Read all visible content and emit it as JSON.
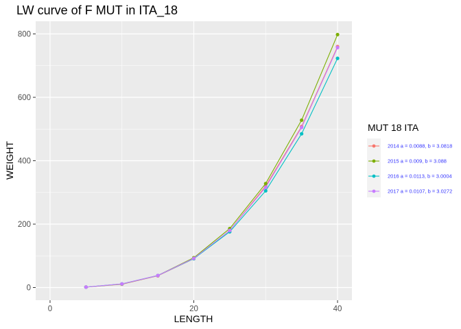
{
  "chart_data": {
    "type": "line",
    "title": "LW curve of F MUT in ITA_18",
    "xlabel": "LENGTH",
    "ylabel": "WEIGHT",
    "xlim": [
      -2,
      42
    ],
    "ylim": [
      -40,
      840
    ],
    "x_ticks": [
      0,
      20,
      40
    ],
    "y_ticks": [
      0,
      200,
      400,
      600,
      800
    ],
    "grid": true,
    "legend": {
      "title": "MUT 18 ITA",
      "position": "right"
    },
    "x": [
      5,
      10,
      15,
      20,
      25,
      30,
      35,
      40
    ],
    "series": [
      {
        "name": "2014 a = 0.0088, b = 3.0818",
        "color": "#F8766D",
        "values": [
          1.3,
          10.5,
          37,
          91,
          180,
          320,
          508,
          760
        ]
      },
      {
        "name": "2015 a = 0.009, b = 3.088",
        "color": "#7CAE00",
        "values": [
          1.3,
          11,
          38,
          94,
          186,
          328,
          528,
          798
        ]
      },
      {
        "name": "2016 a = 0.0113, b = 3.0004",
        "color": "#00BFC4",
        "values": [
          1.4,
          11.5,
          38,
          91,
          176,
          305,
          485,
          723
        ]
      },
      {
        "name": "2017 a = 0.0107, b = 3.0272",
        "color": "#C77CFF",
        "values": [
          1.4,
          11.5,
          38,
          92,
          180,
          316,
          505,
          757
        ]
      }
    ]
  }
}
